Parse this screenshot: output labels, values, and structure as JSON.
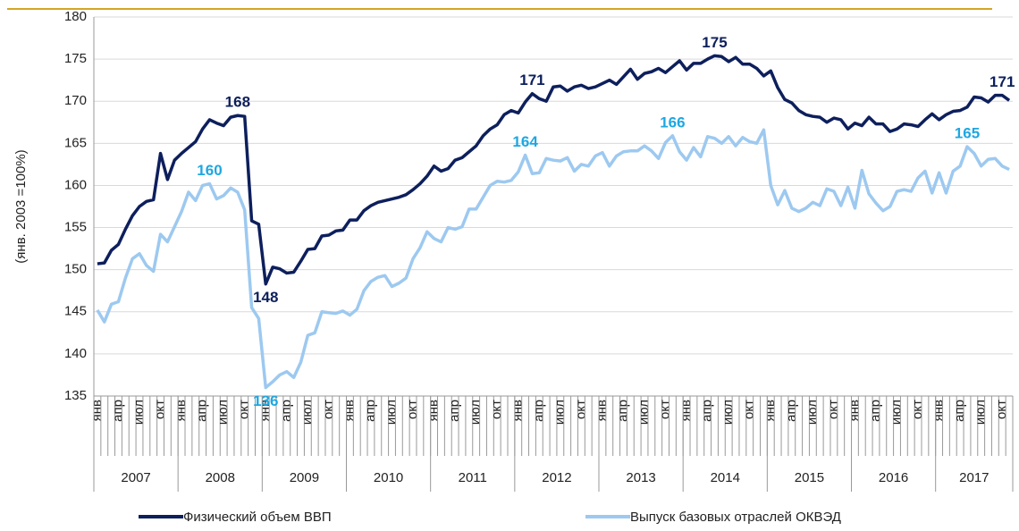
{
  "chart_data": {
    "type": "line",
    "ylabel": "(янв. 2003 =100%)",
    "ylim": [
      135,
      180
    ],
    "yticks": [
      135,
      140,
      145,
      150,
      155,
      160,
      165,
      170,
      175,
      180
    ],
    "grid": true,
    "legend": "bottom",
    "years": [
      "2007",
      "2008",
      "2009",
      "2010",
      "2011",
      "2012",
      "2013",
      "2014",
      "2015",
      "2016",
      "2017"
    ],
    "categories": [
      "янв",
      null,
      null,
      "апр",
      null,
      null,
      "июл",
      null,
      null,
      "окт",
      null,
      null,
      "янв",
      null,
      null,
      "апр",
      null,
      null,
      "июл",
      null,
      null,
      "окт",
      null,
      null,
      "янв",
      null,
      null,
      "апр",
      null,
      null,
      "июл",
      null,
      null,
      "окт",
      null,
      null,
      "янв",
      null,
      null,
      "апр",
      null,
      null,
      "июл",
      null,
      null,
      "окт",
      null,
      null,
      "янв",
      null,
      null,
      "апр",
      null,
      null,
      "июл",
      null,
      null,
      "окт",
      null,
      null,
      "янв",
      null,
      null,
      "апр",
      null,
      null,
      "июл",
      null,
      null,
      "окт",
      null,
      null,
      "янв",
      null,
      null,
      "апр",
      null,
      null,
      "июл",
      null,
      null,
      "окт",
      null,
      null,
      "янв",
      null,
      null,
      "апр",
      null,
      null,
      "июл",
      null,
      null,
      "окт",
      null,
      null,
      "янв",
      null,
      null,
      "апр",
      null,
      null,
      "июл",
      null,
      null,
      "окт",
      null,
      null,
      "янв",
      null,
      null,
      "апр",
      null,
      null,
      "июл",
      null,
      null,
      "окт",
      null,
      null,
      "янв",
      null,
      null,
      "апр",
      null,
      null,
      "июл",
      null,
      null,
      "окт",
      null
    ],
    "series": [
      {
        "name": "Физический объем ВВП",
        "color": "#0d1f5c",
        "values": [
          150.7,
          150.8,
          152.3,
          153.0,
          154.8,
          156.4,
          157.5,
          158.1,
          158.3,
          163.8,
          160.7,
          163.0,
          163.8,
          164.5,
          165.2,
          166.7,
          167.8,
          167.4,
          167.1,
          168.1,
          168.3,
          168.2,
          155.8,
          155.4,
          148.3,
          150.3,
          150.1,
          149.6,
          149.7,
          151.0,
          152.4,
          152.5,
          154.0,
          154.1,
          154.6,
          154.7,
          155.9,
          155.9,
          157.0,
          157.6,
          158.0,
          158.2,
          158.4,
          158.6,
          158.9,
          159.5,
          160.2,
          161.1,
          162.3,
          161.7,
          162.0,
          163.0,
          163.3,
          164.0,
          164.7,
          165.9,
          166.7,
          167.2,
          168.4,
          168.9,
          168.6,
          169.9,
          170.9,
          170.3,
          170.0,
          171.7,
          171.8,
          171.2,
          171.7,
          171.9,
          171.5,
          171.7,
          172.1,
          172.5,
          172.0,
          172.9,
          173.8,
          172.6,
          173.3,
          173.5,
          173.9,
          173.4,
          174.1,
          174.8,
          173.7,
          174.5,
          174.5,
          175.0,
          175.4,
          175.3,
          174.7,
          175.2,
          174.4,
          174.4,
          173.9,
          173.0,
          173.6,
          171.6,
          170.2,
          169.8,
          168.9,
          168.4,
          168.2,
          168.1,
          167.5,
          168.0,
          167.8,
          166.7,
          167.4,
          167.1,
          168.1,
          167.3,
          167.3,
          166.4,
          166.7,
          167.3,
          167.2,
          167.0,
          167.8,
          168.5,
          167.8,
          168.4,
          168.8,
          168.9,
          169.3,
          170.5,
          170.4,
          169.9,
          170.7,
          170.7,
          170.1
        ]
      },
      {
        "name": "Выпуск базовых отраслей ОКВЭД",
        "color": "#9dc9f0",
        "values": [
          145.2,
          143.8,
          145.9,
          146.2,
          149.0,
          151.3,
          151.9,
          150.5,
          149.8,
          154.2,
          153.3,
          155.1,
          156.9,
          159.2,
          158.2,
          160.0,
          160.2,
          158.4,
          158.8,
          159.7,
          159.2,
          157.1,
          145.5,
          144.2,
          136.0,
          136.7,
          137.5,
          137.9,
          137.2,
          139.0,
          142.2,
          142.5,
          145.0,
          144.9,
          144.8,
          145.1,
          144.6,
          145.3,
          147.5,
          148.6,
          149.1,
          149.3,
          148.0,
          148.4,
          149.0,
          151.3,
          152.6,
          154.5,
          153.7,
          153.3,
          155.0,
          154.8,
          155.1,
          157.2,
          157.2,
          158.6,
          160.0,
          160.5,
          160.4,
          160.6,
          161.6,
          163.6,
          161.4,
          161.5,
          163.2,
          163.0,
          162.9,
          163.3,
          161.7,
          162.5,
          162.3,
          163.5,
          163.9,
          162.3,
          163.5,
          164.0,
          164.1,
          164.1,
          164.7,
          164.1,
          163.2,
          165.1,
          165.9,
          164.0,
          163.0,
          164.5,
          163.4,
          165.8,
          165.6,
          165.0,
          165.8,
          164.7,
          165.7,
          165.2,
          165.0,
          166.6,
          160.0,
          157.7,
          159.4,
          157.3,
          156.9,
          157.3,
          158.0,
          157.6,
          159.6,
          159.3,
          157.6,
          159.8,
          157.3,
          161.8,
          159.0,
          157.9,
          157.0,
          157.5,
          159.3,
          159.5,
          159.3,
          160.9,
          161.7,
          159.1,
          161.5,
          159.1,
          161.7,
          162.3,
          164.6,
          163.8,
          162.3,
          163.1,
          163.2,
          162.3,
          161.9
        ]
      }
    ],
    "annotations": [
      {
        "series": 0,
        "index": 20,
        "label": "168"
      },
      {
        "series": 0,
        "index": 24,
        "label": "148"
      },
      {
        "series": 0,
        "index": 62,
        "label": "171"
      },
      {
        "series": 0,
        "index": 88,
        "label": "175"
      },
      {
        "series": 0,
        "index": 129,
        "label": "171"
      },
      {
        "series": 1,
        "index": 16,
        "label": "160"
      },
      {
        "series": 1,
        "index": 24,
        "label": "136"
      },
      {
        "series": 1,
        "index": 61,
        "label": "164"
      },
      {
        "series": 1,
        "index": 82,
        "label": "166"
      },
      {
        "series": 1,
        "index": 124,
        "label": "165"
      }
    ]
  }
}
